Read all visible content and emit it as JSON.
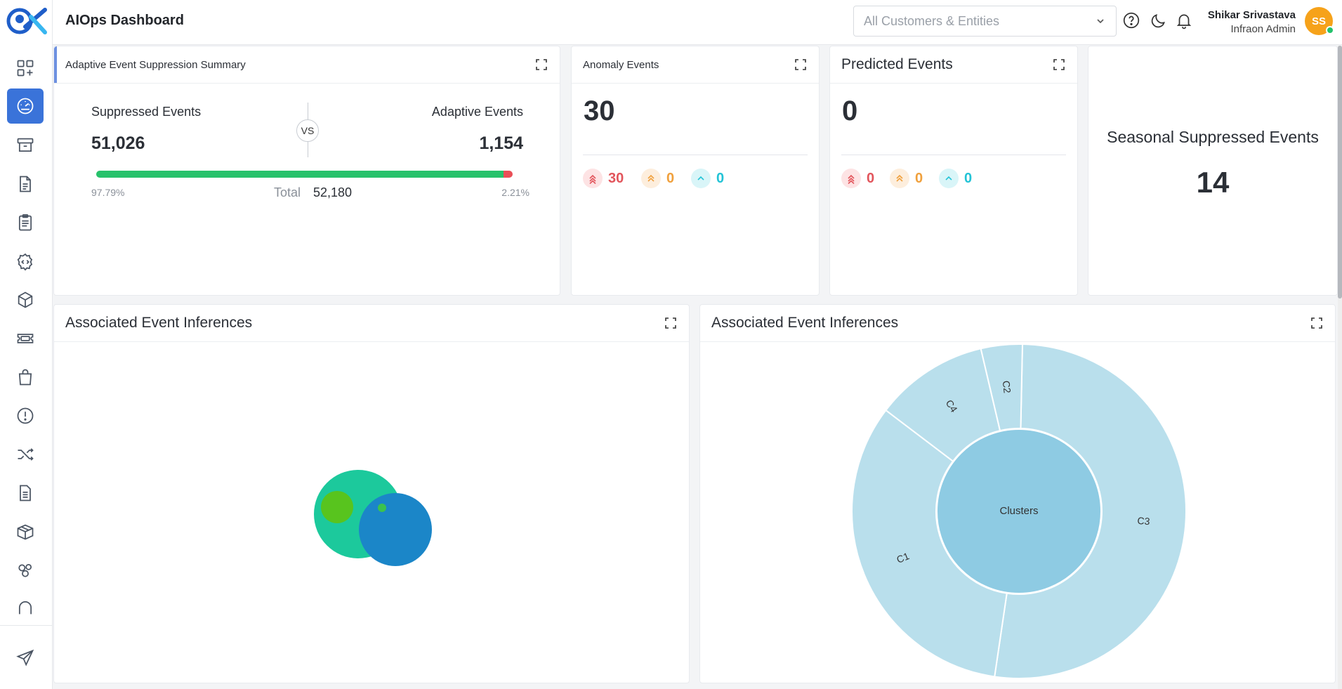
{
  "app": {
    "title": "AIOps Dashboard"
  },
  "header": {
    "customer_placeholder": "All Customers & Entities",
    "user_name": "Shikar Srivastava",
    "user_role": "Infraon Admin",
    "avatar_initials": "SS"
  },
  "sidebar": {
    "items": [
      {
        "icon": "dashboard-add-icon"
      },
      {
        "icon": "speedometer-icon",
        "active": true
      },
      {
        "icon": "archive-icon"
      },
      {
        "icon": "document-icon"
      },
      {
        "icon": "clipboard-icon"
      },
      {
        "icon": "code-gear-icon"
      },
      {
        "icon": "cube-icon"
      },
      {
        "icon": "ticket-icon"
      },
      {
        "icon": "shopping-bag-icon"
      },
      {
        "icon": "alert-circle-icon"
      },
      {
        "icon": "shuffle-icon"
      },
      {
        "icon": "report-icon"
      },
      {
        "icon": "package-icon"
      },
      {
        "icon": "hub-icon"
      },
      {
        "icon": "arch-icon"
      },
      {
        "icon": "send-icon"
      }
    ]
  },
  "suppression": {
    "title": "Adaptive Event Suppression Summary",
    "left_label": "Suppressed Events",
    "left_value": "51,026",
    "vs": "VS",
    "right_label": "Adaptive Events",
    "right_value": "1,154",
    "left_pct": "97.79%",
    "right_pct": "2.21%",
    "left_fraction": 0.9779,
    "total_label": "Total",
    "total_value": "52,180"
  },
  "anomaly": {
    "title": "Anomaly Events",
    "value": "30",
    "critical": "30",
    "major": "0",
    "minor": "0"
  },
  "predicted": {
    "title": "Predicted Events",
    "value": "0",
    "critical": "0",
    "major": "0",
    "minor": "0"
  },
  "seasonal": {
    "title": "Seasonal Suppressed Events",
    "value": "14"
  },
  "inferences_left": {
    "title": "Associated Event Inferences"
  },
  "inferences_right": {
    "title": "Associated Event Inferences"
  },
  "colors": {
    "accent": "#3a73d9",
    "critical": "#e2555c",
    "major": "#f0a03c",
    "minor": "#22c3d6",
    "sunburst_inner": "#8ecbe3",
    "sunburst_outer": "#b9dfec"
  },
  "chart_data": [
    {
      "type": "bubble",
      "bubbles": [
        {
          "color": "#1cc99c",
          "size": "large"
        },
        {
          "color": "#1b86c8",
          "size": "large"
        },
        {
          "color": "#58c41e",
          "size": "small"
        },
        {
          "color": "#3bc24e",
          "size": "tiny"
        }
      ]
    },
    {
      "type": "sunburst",
      "center_label": "Clusters",
      "segments": [
        {
          "name": "C3",
          "value": 52
        },
        {
          "name": "C1",
          "value": 33
        },
        {
          "name": "C4",
          "value": 11
        },
        {
          "name": "C2",
          "value": 4
        }
      ]
    }
  ]
}
